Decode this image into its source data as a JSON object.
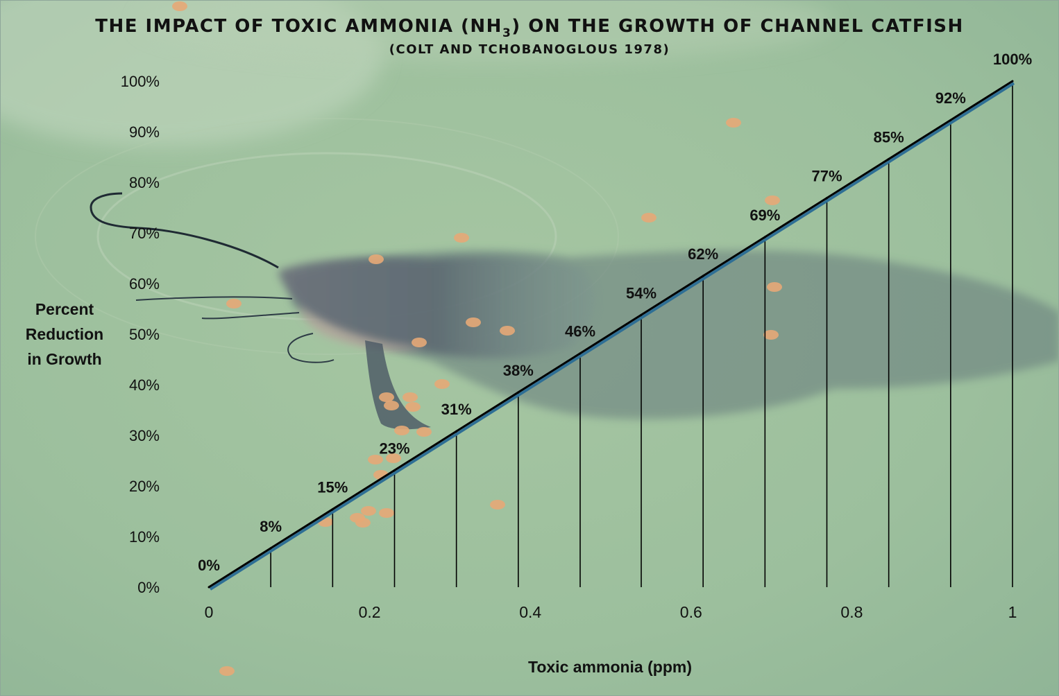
{
  "colors": {
    "water_light": "#a8c7a4",
    "water_mid": "#9dbf9c",
    "water_dark": "#8eb393",
    "fish_body": "#5f6a74",
    "fish_belly": "#9a8a86",
    "pellet": "#e6a877",
    "line_shadow": "#2f6f95",
    "line_main": "#000000",
    "drop_line": "#000000"
  },
  "chart_data": {
    "type": "line",
    "title_pre": "THE IMPACT OF TOXIC AMMONIA (NH",
    "title_sub": "3",
    "title_post": ")  ON THE GROWTH OF CHANNEL CATFISH",
    "subtitle": "(COLT AND TCHOBANOGLOUS 1978)",
    "xlabel": "Toxic ammonia (ppm)",
    "ylabel_lines": [
      "Percent",
      "Reduction",
      "in Growth"
    ],
    "xlim": [
      0,
      1
    ],
    "ylim": [
      0,
      1
    ],
    "x_ticks": [
      {
        "value": 0,
        "label": "0"
      },
      {
        "value": 0.2,
        "label": "0.2"
      },
      {
        "value": 0.4,
        "label": "0.4"
      },
      {
        "value": 0.6,
        "label": "0.6"
      },
      {
        "value": 0.8,
        "label": "0.8"
      },
      {
        "value": 1,
        "label": "1"
      }
    ],
    "y_ticks": [
      {
        "value": 0,
        "label": "0%"
      },
      {
        "value": 0.1,
        "label": "10%"
      },
      {
        "value": 0.2,
        "label": "20%"
      },
      {
        "value": 0.3,
        "label": "30%"
      },
      {
        "value": 0.4,
        "label": "40%"
      },
      {
        "value": 0.5,
        "label": "50%"
      },
      {
        "value": 0.6,
        "label": "60%"
      },
      {
        "value": 0.7,
        "label": "70%"
      },
      {
        "value": 0.8,
        "label": "80%"
      },
      {
        "value": 0.9,
        "label": "90%"
      },
      {
        "value": 1,
        "label": "100%"
      }
    ],
    "grid": false,
    "drop_lines": true,
    "points": [
      {
        "x": 0,
        "y": 0,
        "label": "0%"
      },
      {
        "x": 0.077,
        "y": 0.077,
        "label": "8%"
      },
      {
        "x": 0.154,
        "y": 0.154,
        "label": "15%"
      },
      {
        "x": 0.231,
        "y": 0.231,
        "label": "23%"
      },
      {
        "x": 0.308,
        "y": 0.308,
        "label": "31%"
      },
      {
        "x": 0.385,
        "y": 0.385,
        "label": "38%"
      },
      {
        "x": 0.462,
        "y": 0.462,
        "label": "46%"
      },
      {
        "x": 0.538,
        "y": 0.538,
        "label": "54%"
      },
      {
        "x": 0.615,
        "y": 0.615,
        "label": "62%"
      },
      {
        "x": 0.692,
        "y": 0.692,
        "label": "69%"
      },
      {
        "x": 0.769,
        "y": 0.769,
        "label": "77%"
      },
      {
        "x": 0.846,
        "y": 0.846,
        "label": "85%"
      },
      {
        "x": 0.923,
        "y": 0.923,
        "label": "92%"
      },
      {
        "x": 1,
        "y": 1,
        "label": "100%"
      }
    ]
  }
}
